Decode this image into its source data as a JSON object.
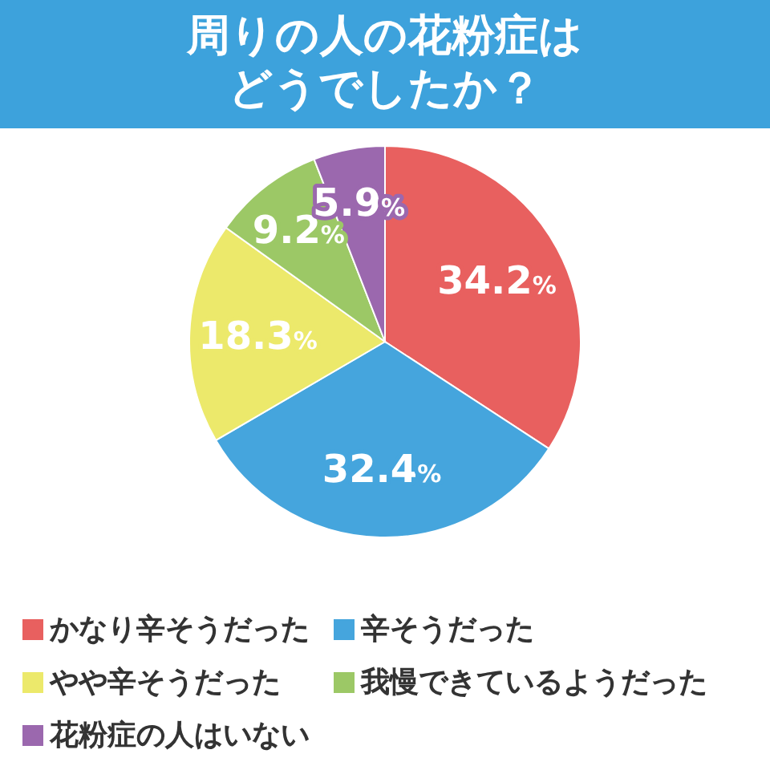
{
  "chart_data": {
    "type": "pie",
    "title": "周りの人の花粉症はどうでしたか？",
    "categories": [
      "かなり辛そうだった",
      "辛そうだった",
      "やや辛そうだった",
      "我慢できているようだった",
      "花粉症の人はいない"
    ],
    "values": [
      34.2,
      32.4,
      18.3,
      9.2,
      5.9
    ],
    "colors": [
      "#e8605f",
      "#45a5dd",
      "#ece96b",
      "#9cc866",
      "#9b68ae"
    ],
    "value_labels": [
      "34.2%",
      "32.4%",
      "18.3%",
      "9.2%",
      "5.9%"
    ],
    "legend": "bottom"
  }
}
